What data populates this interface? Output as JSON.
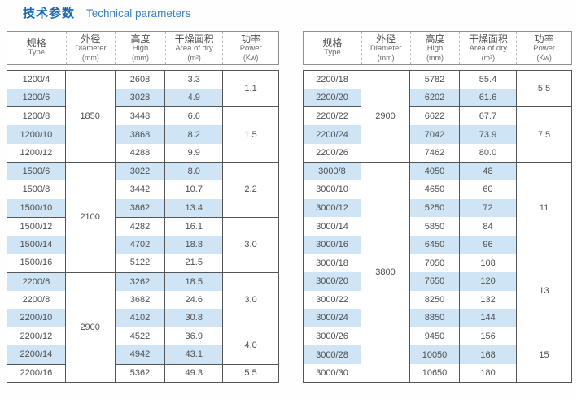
{
  "title": {
    "zh": "技术参数",
    "en": "Technical parameters"
  },
  "header": {
    "columns": [
      {
        "key": "type",
        "zh": "规格",
        "en": "Type",
        "unit": ""
      },
      {
        "key": "diameter",
        "zh": "外径",
        "en": "Diameter",
        "unit": "(mm)"
      },
      {
        "key": "high",
        "zh": "高度",
        "en": "High",
        "unit": "(mm)"
      },
      {
        "key": "area",
        "zh": "干燥面积",
        "en": "Area of dry",
        "unit": "(m²)"
      },
      {
        "key": "power",
        "zh": "功率",
        "en": "Power",
        "unit": "(Kw)"
      }
    ]
  },
  "tables": [
    {
      "name": "left",
      "rows": [
        {
          "type": "1200/4",
          "high": "2608",
          "area": "3.3"
        },
        {
          "type": "1200/6",
          "high": "3028",
          "area": "4.9"
        },
        {
          "type": "1200/8",
          "high": "3448",
          "area": "6.6"
        },
        {
          "type": "1200/10",
          "high": "3868",
          "area": "8.2"
        },
        {
          "type": "1200/12",
          "high": "4288",
          "area": "9.9"
        },
        {
          "type": "1500/6",
          "high": "3022",
          "area": "8.0"
        },
        {
          "type": "1500/8",
          "high": "3442",
          "area": "10.7"
        },
        {
          "type": "1500/10",
          "high": "3862",
          "area": "13.4"
        },
        {
          "type": "1500/12",
          "high": "4282",
          "area": "16.1"
        },
        {
          "type": "1500/14",
          "high": "4702",
          "area": "18.8"
        },
        {
          "type": "1500/16",
          "high": "5122",
          "area": "21.5"
        },
        {
          "type": "2200/6",
          "high": "3262",
          "area": "18.5"
        },
        {
          "type": "2200/8",
          "high": "3682",
          "area": "24.6"
        },
        {
          "type": "2200/10",
          "high": "4102",
          "area": "30.8"
        },
        {
          "type": "2200/12",
          "high": "4522",
          "area": "36.9"
        },
        {
          "type": "2200/14",
          "high": "4942",
          "area": "43.1"
        },
        {
          "type": "2200/16",
          "high": "5362",
          "area": "49.3"
        }
      ],
      "diameter_groups": [
        {
          "value": "1850",
          "span": 5
        },
        {
          "value": "2100",
          "span": 6
        },
        {
          "value": "2900",
          "span": 6
        }
      ],
      "power_groups": [
        {
          "value": "1.1",
          "span": 2
        },
        {
          "value": "1.5",
          "span": 3
        },
        {
          "value": "2.2",
          "span": 3
        },
        {
          "value": "3.0",
          "span": 3
        },
        {
          "value": "3.0",
          "span": 3
        },
        {
          "value": "4.0",
          "span": 2
        },
        {
          "value": "5.5",
          "span": 1
        }
      ]
    },
    {
      "name": "right",
      "rows": [
        {
          "type": "2200/18",
          "high": "5782",
          "area": "55.4"
        },
        {
          "type": "2200/20",
          "high": "6202",
          "area": "61.6"
        },
        {
          "type": "2200/22",
          "high": "6622",
          "area": "67.7"
        },
        {
          "type": "2200/24",
          "high": "7042",
          "area": "73.9"
        },
        {
          "type": "2200/26",
          "high": "7462",
          "area": "80.0"
        },
        {
          "type": "3000/8",
          "high": "4050",
          "area": "48"
        },
        {
          "type": "3000/10",
          "high": "4650",
          "area": "60"
        },
        {
          "type": "3000/12",
          "high": "5250",
          "area": "72"
        },
        {
          "type": "3000/14",
          "high": "5850",
          "area": "84"
        },
        {
          "type": "3000/16",
          "high": "6450",
          "area": "96"
        },
        {
          "type": "3000/18",
          "high": "7050",
          "area": "108"
        },
        {
          "type": "3000/20",
          "high": "7650",
          "area": "120"
        },
        {
          "type": "3000/22",
          "high": "8250",
          "area": "132"
        },
        {
          "type": "3000/24",
          "high": "8850",
          "area": "144"
        },
        {
          "type": "3000/26",
          "high": "9450",
          "area": "156"
        },
        {
          "type": "3000/28",
          "high": "10050",
          "area": "168"
        },
        {
          "type": "3000/30",
          "high": "10650",
          "area": "180"
        }
      ],
      "diameter_groups": [
        {
          "value": "2900",
          "span": 5
        },
        {
          "value": "3800",
          "span": 12
        }
      ],
      "power_groups": [
        {
          "value": "5.5",
          "span": 2
        },
        {
          "value": "7.5",
          "span": 3
        },
        {
          "value": "11",
          "span": 5
        },
        {
          "value": "13",
          "span": 4
        },
        {
          "value": "15",
          "span": 3
        }
      ]
    }
  ],
  "colors": {
    "accent": "#1c69ae",
    "accent_light": "#3e80bf",
    "row_shade": "#cfe4f4",
    "border": "#545557",
    "header_border": "#8f9092",
    "text": "#4e5052"
  }
}
